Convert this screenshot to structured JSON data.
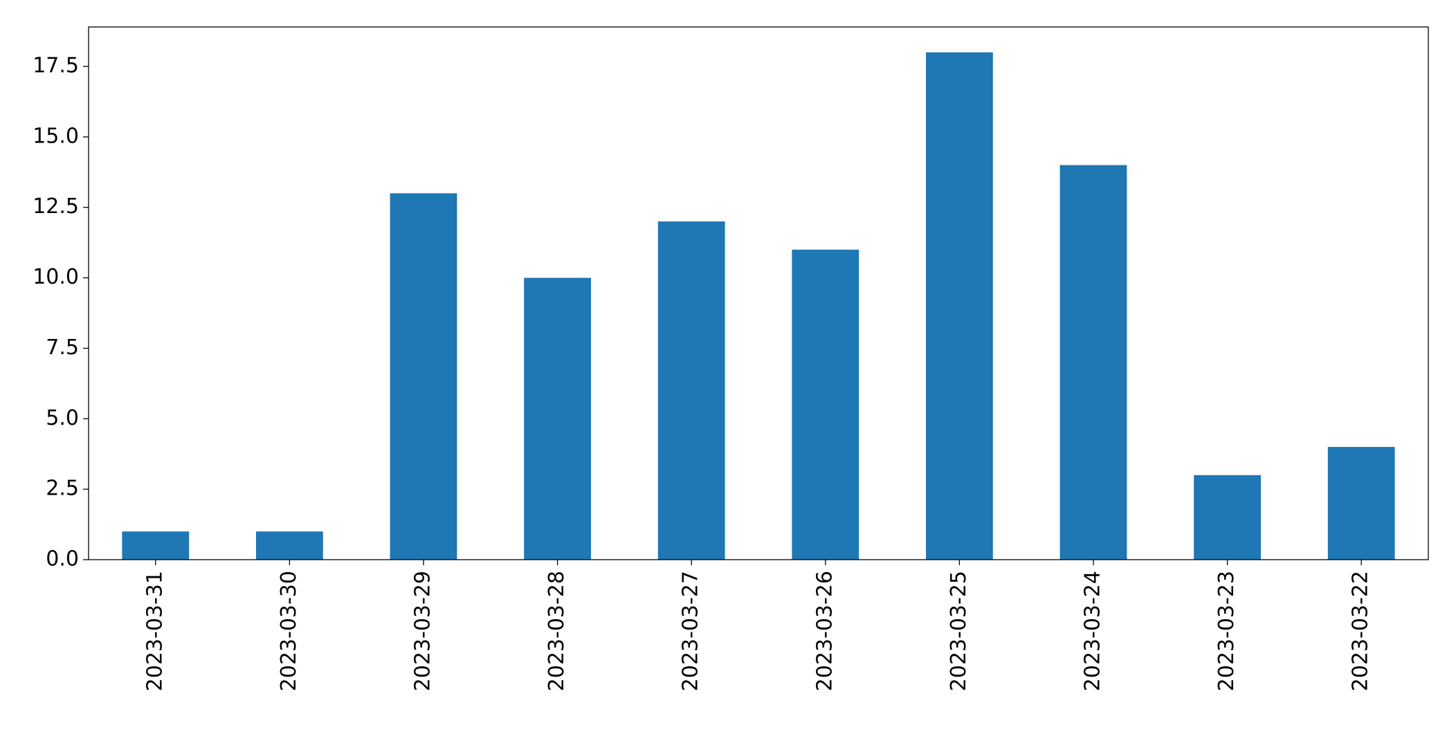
{
  "chart_data": {
    "type": "bar",
    "categories": [
      "2023-03-31",
      "2023-03-30",
      "2023-03-29",
      "2023-03-28",
      "2023-03-27",
      "2023-03-26",
      "2023-03-25",
      "2023-03-24",
      "2023-03-23",
      "2023-03-22"
    ],
    "values": [
      1,
      1,
      13,
      10,
      12,
      11,
      18,
      14,
      3,
      4
    ],
    "color": "#1f77b4",
    "ylim": [
      0,
      18.9
    ],
    "yticks": [
      {
        "value": 0,
        "label": "0.0"
      },
      2.5,
      {
        "value": 5,
        "label": "5.0"
      },
      7.5,
      {
        "value": 10,
        "label": "10.0"
      },
      12.5,
      {
        "value": 15,
        "label": "15.0"
      },
      17.5
    ],
    "grid": false
  }
}
